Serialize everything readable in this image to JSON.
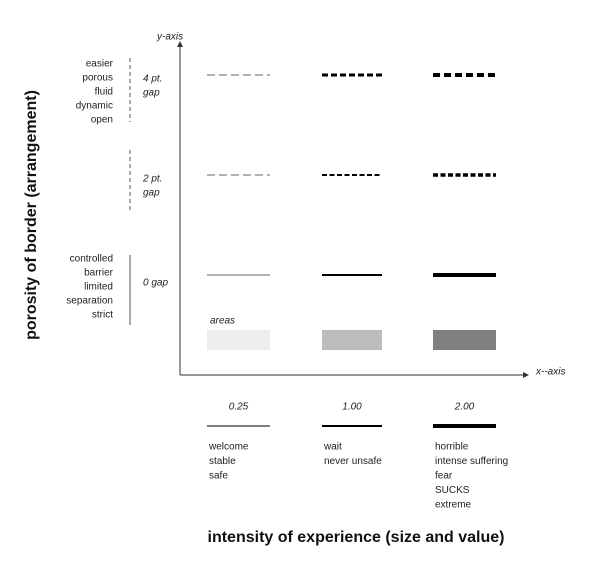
{
  "axes": {
    "y_label": "y-axis",
    "x_label": "x--axis",
    "y_title": "porosity of border (arrangement)",
    "x_title": "intensity of experience (size and value)"
  },
  "rows": [
    {
      "gap": [
        "4 pt.",
        "gap"
      ],
      "words": [
        "easier",
        "porous",
        "fluid",
        "dynamic",
        "open"
      ]
    },
    {
      "gap": [
        "2 pt.",
        "gap"
      ],
      "words": []
    },
    {
      "gap": [
        "0 gap"
      ],
      "words": [
        "controlled",
        "barrier",
        "limited",
        "separation",
        "strict"
      ]
    }
  ],
  "areas_label": "areas",
  "columns": [
    {
      "value": "0.25",
      "words": [
        "welcome",
        "stable",
        "safe"
      ]
    },
    {
      "value": "1.00",
      "words": [
        "wait",
        "never unsafe"
      ]
    },
    {
      "value": "2.00",
      "words": [
        "horrible",
        "intense suffering",
        "fear",
        "SUCKS",
        "extreme"
      ]
    }
  ]
}
